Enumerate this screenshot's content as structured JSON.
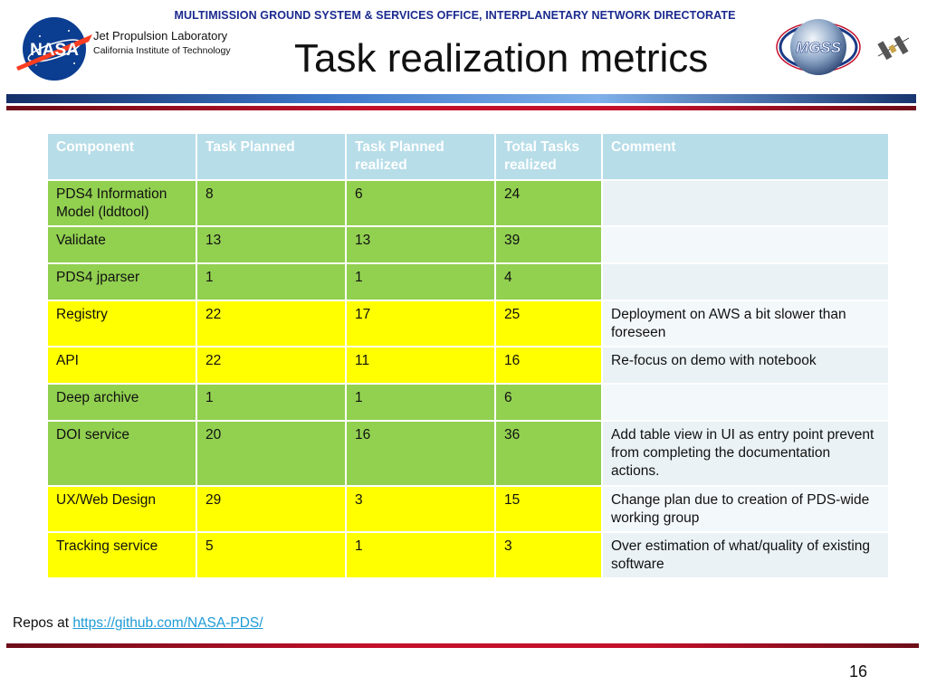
{
  "header": {
    "directorate": "MULTIMISSION GROUND SYSTEM & SERVICES OFFICE, INTERPLANETARY NETWORK DIRECTORATE",
    "org_name": "Jet Propulsion Laboratory",
    "org_sub": "California Institute of Technology",
    "nasa_logo_text": "NASA",
    "mgss_logo_text": "MGSS"
  },
  "slide": {
    "title": "Task realization metrics",
    "page_number": "16"
  },
  "table": {
    "columns": [
      "Component",
      "Task Planned",
      "Task Planned realized",
      "Total Tasks realized",
      "Comment"
    ],
    "rows": [
      {
        "component": "PDS4 Information Model (lddtool)",
        "planned": "8",
        "planned_realized": "6",
        "total_realized": "24",
        "comment": "",
        "status": "green"
      },
      {
        "component": "Validate",
        "planned": "13",
        "planned_realized": "13",
        "total_realized": "39",
        "comment": "",
        "status": "green"
      },
      {
        "component": "PDS4 jparser",
        "planned": "1",
        "planned_realized": "1",
        "total_realized": "4",
        "comment": "",
        "status": "green"
      },
      {
        "component": "Registry",
        "planned": "22",
        "planned_realized": "17",
        "total_realized": "25",
        "comment": "Deployment on AWS a bit slower than foreseen",
        "status": "yellow"
      },
      {
        "component": "API",
        "planned": "22",
        "planned_realized": "11",
        "total_realized": "16",
        "comment": "Re-focus on demo with notebook",
        "status": "yellow"
      },
      {
        "component": "Deep archive",
        "planned": "1",
        "planned_realized": "1",
        "total_realized": "6",
        "comment": "",
        "status": "green"
      },
      {
        "component": "DOI service",
        "planned": "20",
        "planned_realized": "16",
        "total_realized": "36",
        "comment": "Add table view in UI as entry point prevent from completing the documentation actions.",
        "status": "green"
      },
      {
        "component": "UX/Web Design",
        "planned": "29",
        "planned_realized": "3",
        "total_realized": "15",
        "comment": "Change plan due to creation of PDS-wide working group",
        "status": "yellow"
      },
      {
        "component": "Tracking service",
        "planned": "5",
        "planned_realized": "1",
        "total_realized": "3",
        "comment": "Over estimation of what/quality of existing software",
        "status": "yellow"
      }
    ]
  },
  "footer": {
    "repos_label": "Repos at ",
    "repos_link": "https://github.com/NASA-PDS/"
  },
  "colors": {
    "green": "#92d050",
    "yellow": "#ffff00",
    "header": "#b7dde8",
    "link": "#1e9bd7",
    "directorate": "#1b2a8f"
  }
}
